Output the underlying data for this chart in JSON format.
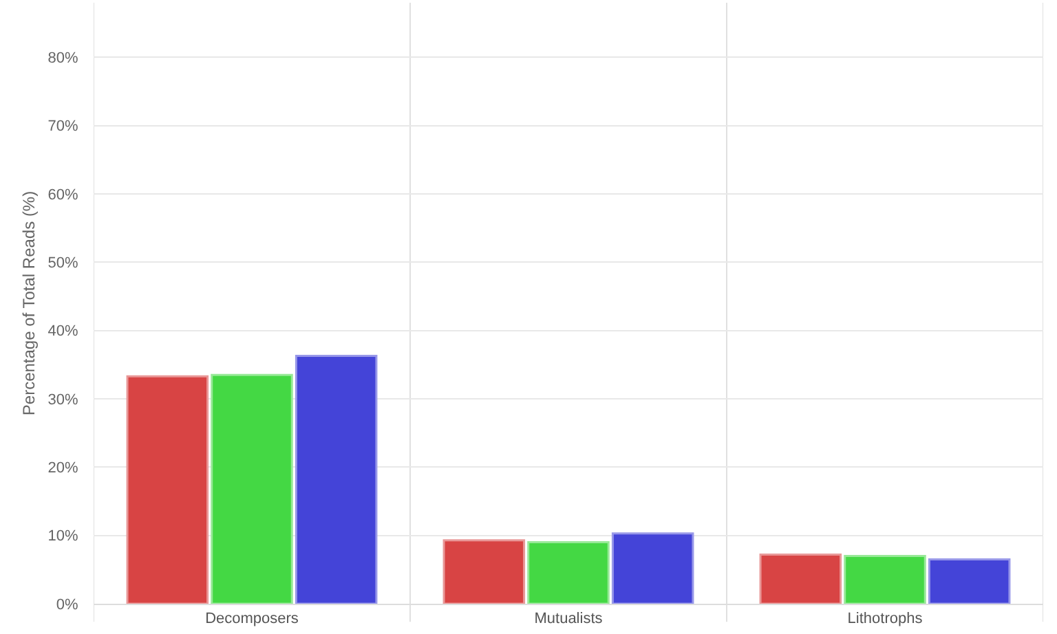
{
  "chart_data": {
    "type": "bar",
    "ylabel": "Percentage of Total Reads (%)",
    "categories": [
      "Decomposers",
      "Mutualists",
      "Lithotrophs"
    ],
    "series": [
      {
        "color": "#d84444",
        "values": [
          33.3,
          9.3,
          7.2
        ]
      },
      {
        "color": "#44d844",
        "values": [
          33.5,
          9.0,
          7.0
        ]
      },
      {
        "color": "#4444d8",
        "values": [
          36.3,
          10.3,
          6.5
        ]
      }
    ],
    "ylim": [
      0,
      88
    ],
    "yticks": [
      {
        "value": 0,
        "label": "0%"
      },
      {
        "value": 10,
        "label": "10%"
      },
      {
        "value": 20,
        "label": "20%"
      },
      {
        "value": 30,
        "label": "30%"
      },
      {
        "value": 40,
        "label": "40%"
      },
      {
        "value": 50,
        "label": "50%"
      },
      {
        "value": 60,
        "label": "60%"
      },
      {
        "value": 70,
        "label": "70%"
      },
      {
        "value": 80,
        "label": "80%"
      }
    ],
    "grid": true
  }
}
